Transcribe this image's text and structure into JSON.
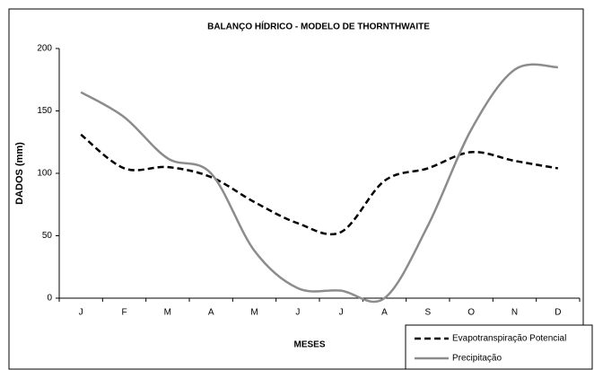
{
  "chart_data": {
    "type": "line",
    "title": "BALANÇO HÍDRICO - MODELO DE THORNTHWAITE",
    "x_label": "MESES",
    "y_label": "DADOS (mm)",
    "categories": [
      "J",
      "F",
      "M",
      "A",
      "M",
      "J",
      "J",
      "A",
      "S",
      "O",
      "N",
      "D"
    ],
    "series": [
      {
        "name": "Evapotranspiração Potencial",
        "color": "#000000",
        "dashed": true,
        "values": [
          131,
          104,
          105,
          97,
          77,
          60,
          53,
          94,
          104,
          117,
          110,
          104
        ]
      },
      {
        "name": "Precipitação",
        "color": "#8c8c8c",
        "dashed": false,
        "values": [
          165,
          145,
          112,
          100,
          38,
          8,
          6,
          0,
          58,
          135,
          183,
          185
        ]
      }
    ],
    "ylim": [
      0,
      200
    ],
    "yticks": [
      0,
      50,
      100,
      150,
      200
    ],
    "grid": false,
    "legend": "bottom-right"
  }
}
